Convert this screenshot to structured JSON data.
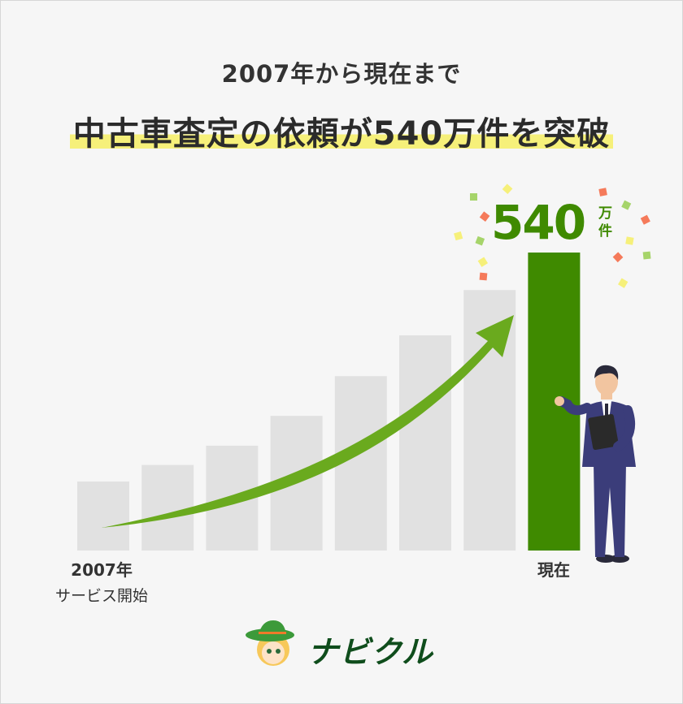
{
  "header": {
    "subtitle": "2007年から現在まで",
    "title": "中古車査定の依頼が540万件を突破"
  },
  "chart_data": {
    "type": "bar",
    "categories": [
      "2007年 サービス開始",
      "",
      "",
      "",
      "",
      "",
      "",
      "現在"
    ],
    "values": [
      125,
      155,
      190,
      244,
      316,
      390,
      472,
      540
    ],
    "value_label": {
      "value": "540",
      "unit_line1": "万",
      "unit_line2": "件"
    },
    "x_labels": {
      "start_year": "2007年",
      "start_text": "サービス開始",
      "end": "現在"
    },
    "unit": "万件",
    "colors": {
      "bars": "#e1e1e1",
      "highlight": "#3f8a00",
      "arrow": "#6aaa1e"
    },
    "trend_arrow": true,
    "grid": false
  },
  "brand": {
    "logo_text": "ナビクル"
  }
}
